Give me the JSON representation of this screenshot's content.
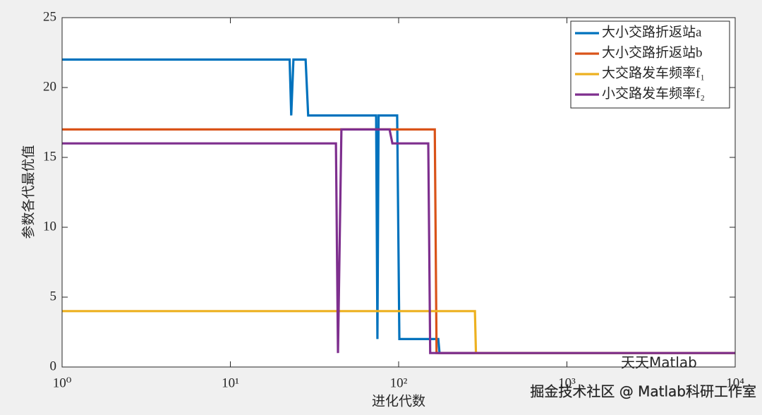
{
  "chart_data": {
    "type": "line",
    "xlabel": "进化代数",
    "ylabel": "参数各代最优值",
    "xscale": "log",
    "xlim": [
      1,
      10000
    ],
    "xticks": [
      {
        "value": 1,
        "label": "10⁰"
      },
      {
        "value": 10,
        "label": "10¹"
      },
      {
        "value": 100,
        "label": "10²"
      },
      {
        "value": 1000,
        "label": "10³"
      },
      {
        "value": 10000,
        "label": "10⁴"
      }
    ],
    "ylim": [
      0,
      25
    ],
    "yticks": [
      0,
      5,
      10,
      15,
      20,
      25
    ],
    "legend": "top-right",
    "series": [
      {
        "name": "大小交路折返站a",
        "color": "#0072bd",
        "x": [
          1,
          22.5,
          23,
          23.7,
          28,
          29,
          73.5,
          74.8,
          76,
          98,
          101,
          172,
          175,
          10000
        ],
        "values": [
          22,
          22,
          18,
          22,
          22,
          18,
          18,
          2,
          18,
          18,
          2,
          2,
          1,
          1
        ]
      },
      {
        "name": "大小交路折返站b",
        "color": "#d95319",
        "x": [
          1,
          164,
          168,
          10000
        ],
        "values": [
          17,
          17,
          1,
          1
        ]
      },
      {
        "name": "大交路发车频率f₁",
        "color": "#edb120",
        "x": [
          1,
          284,
          288,
          10000
        ],
        "values": [
          4,
          4,
          1,
          1
        ]
      },
      {
        "name": "小交路发车频率f₂",
        "color": "#7e2f8e",
        "x": [
          1,
          42.4,
          43.6,
          45.7,
          88.3,
          91.8,
          150,
          154,
          10000
        ],
        "values": [
          16,
          16,
          1,
          17,
          17,
          16,
          16,
          1,
          1
        ]
      }
    ]
  },
  "watermark": {
    "logo_text": "天天Matlab",
    "text": "掘金技术社区 @ Matlab科研工作室"
  }
}
